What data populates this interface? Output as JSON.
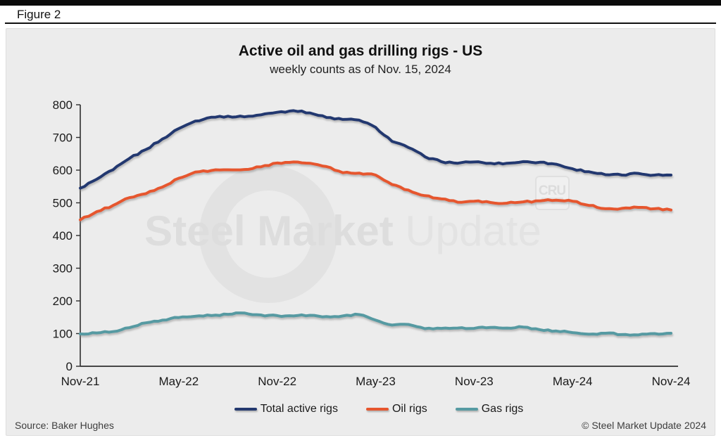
{
  "figure_label": "Figure 2",
  "chart": {
    "title": "Active oil and gas drilling rigs - US",
    "subtitle": "weekly counts as of Nov. 15, 2024"
  },
  "legend": [
    {
      "label": "Total active rigs",
      "color": "#24396f"
    },
    {
      "label": "Oil rigs",
      "color": "#e6562e"
    },
    {
      "label": "Gas rigs",
      "color": "#569aa2"
    }
  ],
  "footer": {
    "source": "Source: Baker Hughes",
    "copyright": "© Steel Market Update 2024"
  },
  "watermark": {
    "text_bold": "Steel Market",
    "text_light": "Update",
    "cru": "CRU",
    "color": "#e1e1e1"
  },
  "colors": {
    "panel_background": "#ececec",
    "axis": "#2e2e2e",
    "total_rigs": "#24396f",
    "oil_rigs": "#e6562e",
    "gas_rigs": "#569aa2"
  },
  "chart_data": {
    "type": "line",
    "title": "Active oil and gas drilling rigs - US",
    "subtitle": "weekly counts as of Nov. 15, 2024",
    "xlabel": "",
    "ylabel": "",
    "ylim": [
      0,
      800
    ],
    "yticks": [
      0,
      100,
      200,
      300,
      400,
      500,
      600,
      700,
      800
    ],
    "grid": false,
    "legend_position": "bottom",
    "x": [
      "Nov-21",
      "Dec-21",
      "Jan-22",
      "Feb-22",
      "Mar-22",
      "Apr-22",
      "May-22",
      "Jun-22",
      "Jul-22",
      "Aug-22",
      "Sep-22",
      "Oct-22",
      "Nov-22",
      "Dec-22",
      "Jan-23",
      "Feb-23",
      "Mar-23",
      "Apr-23",
      "May-23",
      "Jun-23",
      "Jul-23",
      "Aug-23",
      "Sep-23",
      "Oct-23",
      "Nov-23",
      "Dec-23",
      "Jan-24",
      "Feb-24",
      "Mar-24",
      "Apr-24",
      "May-24",
      "Jun-24",
      "Jul-24",
      "Aug-24",
      "Sep-24",
      "Oct-24",
      "Nov-24"
    ],
    "x_tick_labels": [
      "Nov-21",
      "May-22",
      "Nov-22",
      "May-23",
      "Nov-23",
      "May-24",
      "Nov-24"
    ],
    "x_tick_indices": [
      0,
      6,
      12,
      18,
      24,
      30,
      36
    ],
    "series": [
      {
        "name": "Total active rigs",
        "color": "#24396f",
        "values": [
          545,
          572,
          601,
          636,
          663,
          695,
          727,
          750,
          762,
          765,
          763,
          769,
          777,
          782,
          775,
          761,
          755,
          753,
          731,
          688,
          669,
          641,
          626,
          621,
          625,
          621,
          621,
          626,
          624,
          618,
          604,
          595,
          586,
          585,
          590,
          585,
          585
        ]
      },
      {
        "name": "Oil rigs",
        "color": "#e6562e",
        "values": [
          448,
          473,
          492,
          516,
          528,
          548,
          575,
          594,
          599,
          601,
          602,
          610,
          622,
          625,
          621,
          611,
          592,
          591,
          585,
          556,
          539,
          522,
          512,
          502,
          505,
          501,
          499,
          503,
          506,
          508,
          505,
          492,
          482,
          483,
          486,
          482,
          478
        ]
      },
      {
        "name": "Gas rigs",
        "color": "#569aa2",
        "values": [
          99,
          102,
          106,
          118,
          133,
          141,
          149,
          153,
          155,
          159,
          163,
          157,
          155,
          154,
          156,
          152,
          154,
          158,
          141,
          126,
          128,
          115,
          116,
          117,
          116,
          119,
          117,
          120,
          112,
          108,
          103,
          98,
          101,
          97,
          96,
          100,
          101
        ]
      }
    ]
  }
}
